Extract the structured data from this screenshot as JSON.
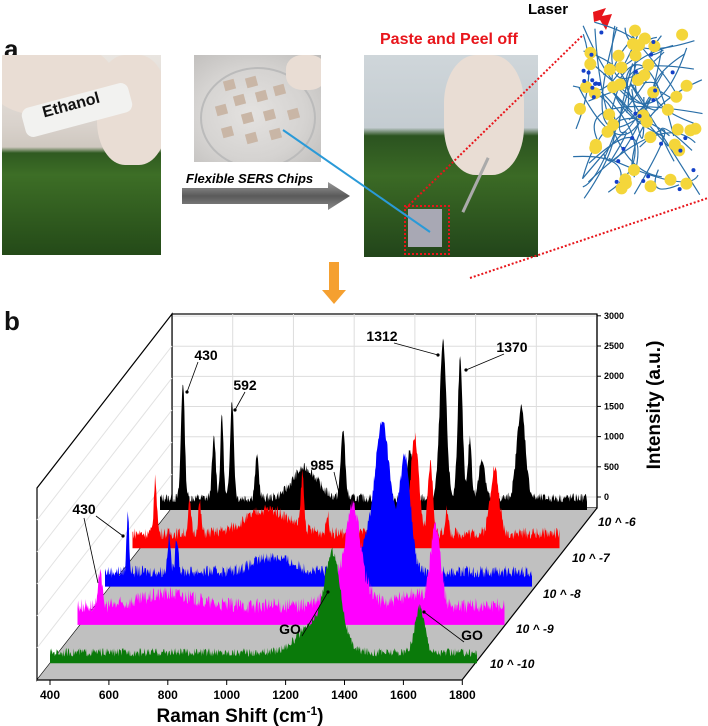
{
  "panel_a": {
    "label": "a",
    "ethanol_label": "Ethanol",
    "chips_label": "Flexible SERS Chips",
    "paste_label": "Paste and Peel off",
    "laser_label": "Laser"
  },
  "panel_b": {
    "label": "b"
  },
  "colors": {
    "black": "#000000",
    "red": "#ff0000",
    "blue": "#0000ff",
    "magenta": "#ff00ff",
    "green": "#0a7a0a",
    "floor": "#c0c0c0",
    "highlight": "#e8151b",
    "arrow": "#f5a030"
  },
  "chart_data": {
    "type": "area",
    "title": "",
    "xlabel": "Raman Shift (cm",
    "xlabel_sup": "-1",
    "xlabel_end": ")",
    "ylabel": "Intensity (a.u.)",
    "xlim": [
      400,
      1800
    ],
    "zlim": [
      0,
      3000
    ],
    "x_ticks": [
      "400",
      "600",
      "800",
      "1000",
      "1200",
      "1400",
      "1600",
      "1800"
    ],
    "z_ticks": [
      "0",
      "500",
      "1000",
      "1500",
      "2000",
      "2500",
      "3000"
    ],
    "grid": true,
    "series": [
      {
        "name": "10 ^ -6",
        "color": "#000000",
        "base": 200,
        "peaks": [
          [
            475,
            1940,
            6
          ],
          [
            577,
            1000,
            6
          ],
          [
            603,
            1400,
            5
          ],
          [
            636,
            1650,
            6
          ],
          [
            718,
            700,
            6
          ],
          [
            875,
            500,
            40
          ],
          [
            1000,
            1150,
            7
          ],
          [
            1220,
            830,
            8
          ],
          [
            1328,
            2570,
            11
          ],
          [
            1384,
            2290,
            8
          ],
          [
            1416,
            1000,
            6
          ],
          [
            1456,
            660,
            10
          ],
          [
            1584,
            1500,
            14
          ]
        ]
      },
      {
        "name": "10 ^ -7",
        "color": "#ff0000",
        "base": 250,
        "peaks": [
          [
            475,
            900,
            5
          ],
          [
            587,
            500,
            5
          ],
          [
            620,
            500,
            5
          ],
          [
            843,
            400,
            70
          ],
          [
            957,
            900,
            5
          ],
          [
            1040,
            300,
            5
          ],
          [
            1325,
            1620,
            13
          ],
          [
            1377,
            1160,
            8
          ],
          [
            1430,
            400,
            5
          ],
          [
            1587,
            1080,
            14
          ]
        ]
      },
      {
        "name": "10 ^ -8",
        "color": "#0000ff",
        "base": 250,
        "peaks": [
          [
            475,
            1000,
            4
          ],
          [
            610,
            580,
            5
          ],
          [
            636,
            580,
            5
          ],
          [
            950,
            250,
            60
          ],
          [
            1300,
            900,
            45
          ],
          [
            1311,
            1600,
            22
          ],
          [
            1384,
            1740,
            18
          ]
        ]
      },
      {
        "name": "10 ^ -9",
        "color": "#ff00ff",
        "base": 320,
        "peaks": [
          [
            475,
            660,
            5
          ],
          [
            700,
            200,
            80
          ],
          [
            1290,
            700,
            50
          ],
          [
            1305,
            1000,
            20
          ],
          [
            1574,
            1320,
            16
          ],
          [
            1500,
            200,
            40
          ]
        ]
      },
      {
        "name": "10 ^ -10",
        "color": "#0a7a0a",
        "base": 180,
        "peaks": [
          [
            1280,
            500,
            60
          ],
          [
            1328,
            1300,
            25
          ],
          [
            1613,
            750,
            16
          ]
        ]
      }
    ],
    "annotations": [
      {
        "text": "430"
      },
      {
        "text": "592"
      },
      {
        "text": "985"
      },
      {
        "text": "1312"
      },
      {
        "text": "1370"
      },
      {
        "text": "430"
      },
      {
        "text": "GO"
      },
      {
        "text": "GO"
      }
    ]
  }
}
